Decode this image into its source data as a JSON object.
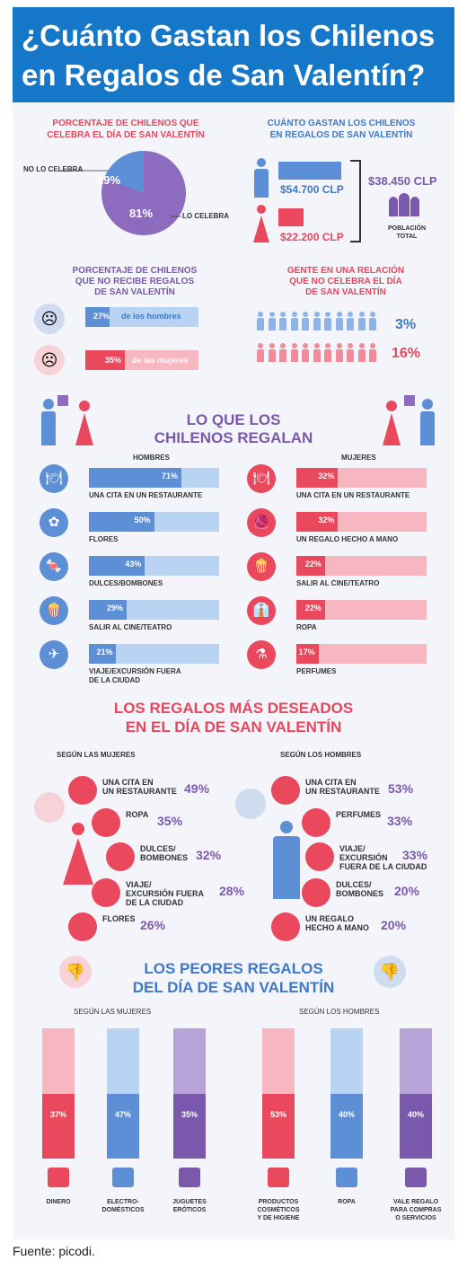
{
  "title_line1": "¿Cuánto Gastan los Chilenos",
  "title_line2": "en Regalos de San Valentín?",
  "celebrate": {
    "title_l1": "PORCENTAJE DE CHILENOS QUE",
    "title_l2": "CELEBRA EL DÍA DE SAN VALENTÍN",
    "no_label": "NO LO CELEBRA",
    "no_value": "19%",
    "yes_label": "LO CELEBRA",
    "yes_value": "81%",
    "no_pct": 19
  },
  "spend": {
    "title_l1": "CUÁNTO GASTAN LOS CHILENOS",
    "title_l2": "EN REGALOS DE SAN VALENTÍN",
    "men": "$54.700 CLP",
    "women": "$22.200 CLP",
    "total": "$38.450 CLP",
    "total_l1": "POBLACIÓN",
    "total_l2": "TOTAL"
  },
  "noreceive": {
    "title_l1": "PORCENTAJE DE CHILENOS",
    "title_l2": "QUE NO RECIBE REGALOS",
    "title_l3": "DE SAN VALENTÍN",
    "men_pct": "27%",
    "men_text": "de los hombres",
    "women_pct": "35%",
    "women_text": "de las mujeres"
  },
  "relation": {
    "title_l1": "GENTE EN UNA RELACIÓN",
    "title_l2": "QUE NO CELEBRA EL DÍA",
    "title_l3": "DE SAN VALENTÍN",
    "men": "3%",
    "women": "16%"
  },
  "gifts": {
    "title_l1": "LO QUE LOS",
    "title_l2": "CHILENOS REGALAN",
    "men_header": "HOMBRES",
    "women_header": "MUJERES",
    "men": [
      {
        "label": "UNA CITA EN UN RESTAURANTE",
        "label2": "",
        "value": "71%",
        "p": 71,
        "icon": "🍽"
      },
      {
        "label": "FLORES",
        "label2": "",
        "value": "50%",
        "p": 50,
        "icon": "✿"
      },
      {
        "label": "DULCES/BOMBONES",
        "label2": "",
        "value": "43%",
        "p": 43,
        "icon": "🍬"
      },
      {
        "label": "SALIR AL CINE/TEATRO",
        "label2": "",
        "value": "29%",
        "p": 29,
        "icon": "🍿"
      },
      {
        "label": "VIAJE/EXCURSIÓN FUERA",
        "label2": "DE LA CIUDAD",
        "value": "21%",
        "p": 21,
        "icon": "✈"
      }
    ],
    "women": [
      {
        "label": "UNA CITA EN UN RESTAURANTE",
        "label2": "",
        "value": "32%",
        "p": 32,
        "icon": "🍽"
      },
      {
        "label": "UN REGALO HECHO A MANO",
        "label2": "",
        "value": "32%",
        "p": 32,
        "icon": "🧶"
      },
      {
        "label": "SALIR AL CINE/TEATRO",
        "label2": "",
        "value": "22%",
        "p": 22,
        "icon": "🍿"
      },
      {
        "label": "ROPA",
        "label2": "",
        "value": "22%",
        "p": 22,
        "icon": "👔"
      },
      {
        "label": "PERFUMES",
        "label2": "",
        "value": "17%",
        "p": 17,
        "icon": "⚗"
      }
    ]
  },
  "desired": {
    "title_l1": "LOS REGALOS MÁS DESEADOS",
    "title_l2": "EN EL DÍA DE SAN VALENTÍN",
    "women_header": "SEGÚN LAS MUJERES",
    "men_header": "SEGÚN LOS HOMBRES",
    "women": [
      {
        "l1": "UNA CITA EN",
        "l2": "UN RESTAURANTE",
        "l3": "",
        "value": "49%"
      },
      {
        "l1": "ROPA",
        "l2": "",
        "l3": "",
        "value": "35%"
      },
      {
        "l1": "DULCES/",
        "l2": "BOMBONES",
        "l3": "",
        "value": "32%"
      },
      {
        "l1": "VIAJE/",
        "l2": "EXCURSIÓN FUERA",
        "l3": "DE LA CIUDAD",
        "value": "28%"
      },
      {
        "l1": "FLORES",
        "l2": "",
        "l3": "",
        "value": "26%"
      }
    ],
    "men": [
      {
        "l1": "UNA CITA EN",
        "l2": "UN RESTAURANTE",
        "l3": "",
        "value": "53%"
      },
      {
        "l1": "PERFUMES",
        "l2": "",
        "l3": "",
        "value": "33%"
      },
      {
        "l1": "VIAJE/",
        "l2": "EXCURSIÓN",
        "l3": "FUERA DE LA CIUDAD",
        "value": "33%"
      },
      {
        "l1": "DULCES/",
        "l2": "BOMBONES",
        "l3": "",
        "value": "20%"
      },
      {
        "l1": "UN REGALO",
        "l2": "HECHO A MANO",
        "l3": "",
        "value": "20%"
      }
    ]
  },
  "worst": {
    "title_l1": "LOS PEORES REGALOS",
    "title_l2": "DEL DÍA DE SAN VALENTÍN",
    "women_header": "SEGÚN LAS MUJERES",
    "men_header": "SEGÚN LOS HOMBRES",
    "items": [
      {
        "value": "37%",
        "p": 37,
        "l1": "DINERO",
        "l2": "",
        "l3": "",
        "color": "#e9485d",
        "light": "#f6b7c0"
      },
      {
        "value": "47%",
        "p": 47,
        "l1": "ELECTRO-",
        "l2": "DOMÉSTICOS",
        "l3": "",
        "color": "#5d8fd6",
        "light": "#b9d3f2"
      },
      {
        "value": "35%",
        "p": 35,
        "l1": "JUGUETES",
        "l2": "ERÓTICOS",
        "l3": "",
        "color": "#7a59ad",
        "light": "#b8a3d8"
      },
      {
        "value": "53%",
        "p": 53,
        "l1": "PRODUCTOS",
        "l2": "COSMÉTICOS",
        "l3": "Y DE HIGIENE",
        "color": "#e9485d",
        "light": "#f6b7c0"
      },
      {
        "value": "40%",
        "p": 40,
        "l1": "ROPA",
        "l2": "",
        "l3": "",
        "color": "#5d8fd6",
        "light": "#b9d3f2"
      },
      {
        "value": "40%",
        "p": 40,
        "l1": "VALE REGALO",
        "l2": "PARA COMPRAS",
        "l3": "O SERVICIOS",
        "color": "#7a59ad",
        "light": "#b8a3d8"
      }
    ]
  },
  "source": "Fuente: picodi."
}
